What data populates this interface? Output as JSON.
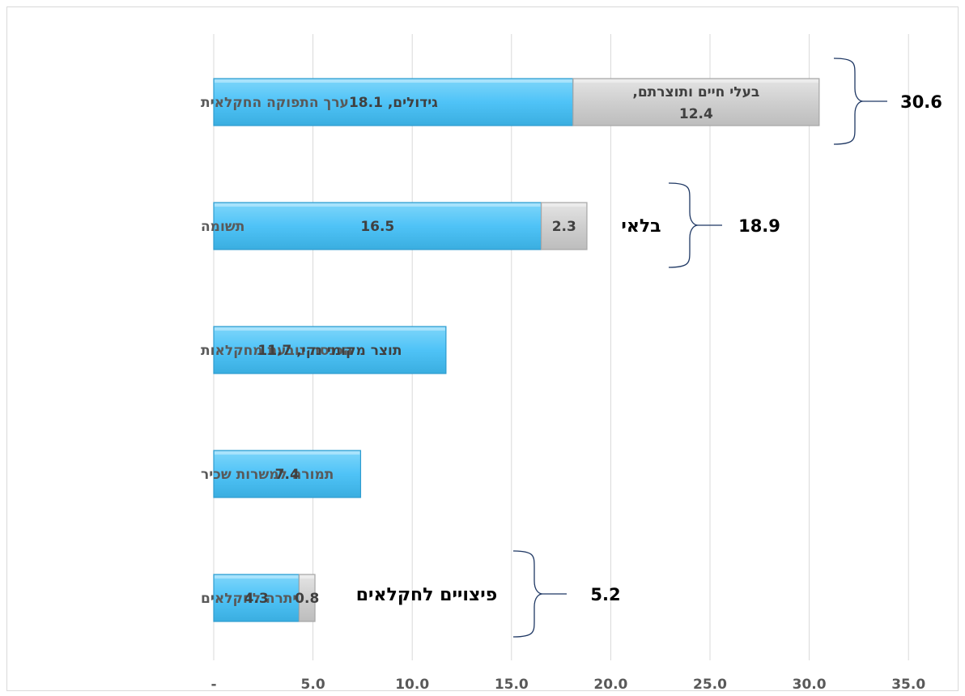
{
  "chart_data": {
    "type": "bar",
    "orientation": "horizontal",
    "stacked": true,
    "xlim": [
      0,
      35
    ],
    "xticks": [
      {
        "value": 0,
        "label": "-"
      },
      {
        "value": 5,
        "label": "5.0"
      },
      {
        "value": 10,
        "label": "10.0"
      },
      {
        "value": 15,
        "label": "15.0"
      },
      {
        "value": 20,
        "label": "20.0"
      },
      {
        "value": 25,
        "label": "25.0"
      },
      {
        "value": 30,
        "label": "30.0"
      },
      {
        "value": 35,
        "label": "35.0"
      }
    ],
    "grid": true,
    "categories": [
      "ערך התפוקה החקלאית",
      "תשומה",
      "הכנסה נובעת מחקלאות",
      "תמורה למשרות שכיר",
      "יתרה לחקלאים"
    ],
    "series": [
      {
        "color": "#4fc3f7",
        "values": [
          18.1,
          16.5,
          11.7,
          7.4,
          4.3
        ],
        "labels": [
          "גידולים, 18.1",
          "16.5",
          "תוצר מקומי נקי, 11.7",
          "7.4",
          "4.3"
        ]
      },
      {
        "color": "#cfcfcf",
        "values": [
          12.4,
          2.3,
          null,
          null,
          0.8
        ],
        "labels": [
          [
            "בעלי חיים ותוצרתם,",
            "12.4"
          ],
          [
            "2.3"
          ],
          null,
          null,
          [
            "0.8"
          ]
        ]
      }
    ],
    "annotations": [
      {
        "category": 0,
        "total": "30.6",
        "text": ""
      },
      {
        "category": 1,
        "total": "18.9",
        "text": "בלאי"
      },
      {
        "category": 4,
        "total": "5.2",
        "text": "פיצויים לחקלאים"
      }
    ]
  }
}
